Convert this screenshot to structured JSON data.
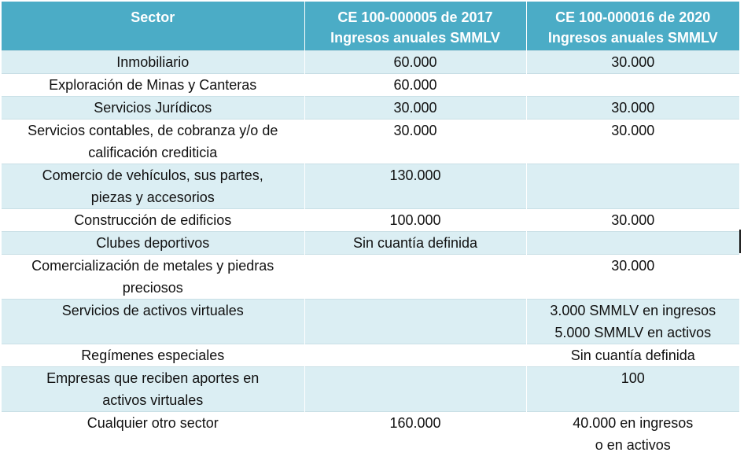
{
  "header": {
    "col1": "Sector",
    "col2_line1": "CE 100-000005 de 2017",
    "col2_line2": "Ingresos anuales SMMLV",
    "col3_line1": "CE 100-000016 de 2020",
    "col3_line2": "Ingresos anuales SMMLV"
  },
  "rows": [
    {
      "sector": [
        "Inmobiliario"
      ],
      "ce2017": [
        "60.000"
      ],
      "ce2020": [
        "30.000"
      ]
    },
    {
      "sector": [
        "Exploración de Minas y Canteras"
      ],
      "ce2017": [
        "60.000"
      ],
      "ce2020": [
        ""
      ]
    },
    {
      "sector": [
        "Servicios Jurídicos"
      ],
      "ce2017": [
        "30.000"
      ],
      "ce2020": [
        "30.000"
      ]
    },
    {
      "sector": [
        "Servicios contables, de cobranza y/o de",
        "calificación crediticia"
      ],
      "ce2017": [
        "30.000"
      ],
      "ce2020": [
        "30.000"
      ]
    },
    {
      "sector": [
        "Comercio de vehículos, sus partes,",
        "piezas y accesorios"
      ],
      "ce2017": [
        "130.000"
      ],
      "ce2020": [
        ""
      ]
    },
    {
      "sector": [
        "Construcción de edificios"
      ],
      "ce2017": [
        "100.000"
      ],
      "ce2020": [
        "30.000"
      ]
    },
    {
      "sector": [
        "Clubes deportivos"
      ],
      "ce2017": [
        "Sin cuantía definida"
      ],
      "ce2020": [
        ""
      ]
    },
    {
      "sector": [
        "Comercialización de metales y piedras",
        "preciosos"
      ],
      "ce2017": [
        ""
      ],
      "ce2020": [
        "30.000"
      ]
    },
    {
      "sector": [
        "Servicios de activos virtuales"
      ],
      "ce2017": [
        ""
      ],
      "ce2020": [
        "3.000 SMMLV en ingresos",
        "5.000 SMMLV en activos"
      ]
    },
    {
      "sector": [
        "Regímenes especiales"
      ],
      "ce2017": [
        ""
      ],
      "ce2020": [
        "Sin cuantía definida"
      ]
    },
    {
      "sector": [
        "Empresas que reciben aportes en",
        "activos virtuales"
      ],
      "ce2017": [
        ""
      ],
      "ce2020": [
        "100"
      ]
    },
    {
      "sector": [
        "Cualquier otro sector"
      ],
      "ce2017": [
        "160.000"
      ],
      "ce2020": [
        "40.000 en ingresos",
        "o en activos"
      ]
    }
  ]
}
